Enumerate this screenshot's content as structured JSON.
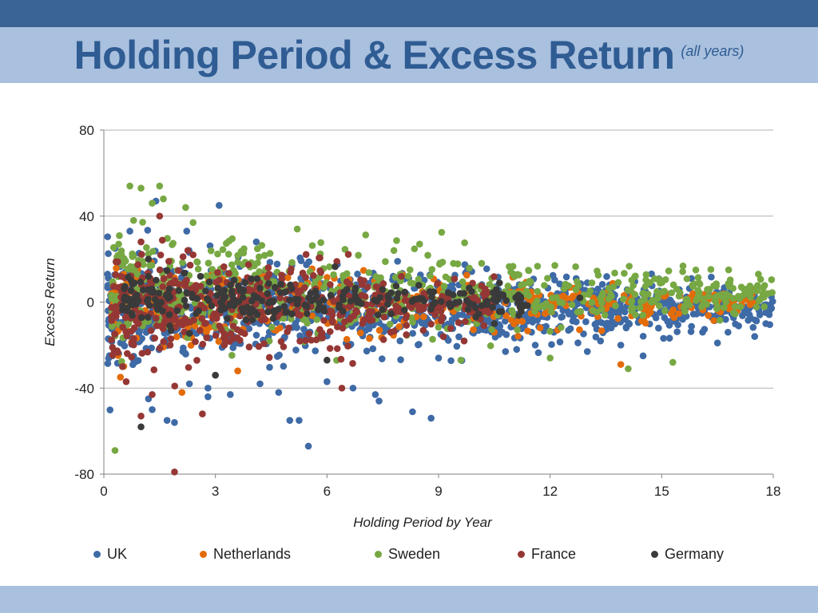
{
  "header": {
    "title": "Holding Period & Excess Return",
    "subtitle": "(all years)"
  },
  "colors": {
    "top_bar": "#3a6496",
    "title_band": "#a9c0de",
    "title_text": "#2f5c93",
    "bottom_bar": "#a9c0de",
    "grid": "#b0b0b0",
    "axis": "#808080"
  },
  "chart_data": {
    "type": "scatter",
    "title": "",
    "xlabel": "Holding Period by Year",
    "ylabel": "Excess Return",
    "xlim": [
      0,
      18
    ],
    "ylim": [
      -80,
      80
    ],
    "x_ticks": [
      0,
      3,
      6,
      9,
      12,
      15,
      18
    ],
    "y_ticks": [
      80,
      40,
      0,
      -40,
      -80
    ],
    "grid": "horizontal",
    "legend_position": "bottom",
    "series": [
      {
        "name": "UK",
        "color": "#3e6aa6",
        "cloud": {
          "x_range": [
            0.1,
            18
          ],
          "n": 1100,
          "y_spread_start": 13,
          "y_spread_end": 4,
          "y_bias": -5
        },
        "points": [
          [
            0.3,
            25
          ],
          [
            0.5,
            13
          ],
          [
            0.4,
            -24
          ],
          [
            0.7,
            33
          ],
          [
            1.4,
            47
          ],
          [
            1.7,
            -55
          ],
          [
            1.9,
            -56
          ],
          [
            1.3,
            -50
          ],
          [
            1.2,
            -45
          ],
          [
            3.1,
            45
          ],
          [
            2.3,
            -38
          ],
          [
            2.8,
            -40
          ],
          [
            2.8,
            -44
          ],
          [
            3.4,
            -43
          ],
          [
            4.1,
            28
          ],
          [
            4.2,
            -38
          ],
          [
            4.7,
            -42
          ],
          [
            5.0,
            -55
          ],
          [
            5.25,
            -55
          ],
          [
            5.5,
            -67
          ],
          [
            6.0,
            -37
          ],
          [
            6.7,
            -40
          ],
          [
            7.3,
            -43
          ],
          [
            7.4,
            -46
          ],
          [
            8.3,
            -51
          ],
          [
            8.8,
            -54
          ],
          [
            9.0,
            -26
          ],
          [
            10.8,
            -23
          ],
          [
            11.1,
            -22
          ],
          [
            11.6,
            -20
          ],
          [
            12.1,
            -14
          ],
          [
            13.0,
            -23
          ],
          [
            13.9,
            -20
          ],
          [
            14.5,
            -25
          ],
          [
            16.1,
            -14
          ],
          [
            16.5,
            -19
          ],
          [
            17.5,
            -16
          ],
          [
            17.8,
            -10
          ],
          [
            15.8,
            11
          ],
          [
            13.6,
            8
          ],
          [
            12.7,
            11
          ],
          [
            0.1,
            13
          ]
        ]
      },
      {
        "name": "Netherlands",
        "color": "#e36c0a",
        "cloud": {
          "x_range": [
            0.2,
            17.5
          ],
          "n": 380,
          "y_spread_start": 10,
          "y_spread_end": 3,
          "y_bias": -2
        },
        "points": [
          [
            0.3,
            5
          ],
          [
            0.5,
            20
          ],
          [
            0.4,
            -13
          ],
          [
            2.1,
            -42
          ],
          [
            3.6,
            -32
          ],
          [
            10.5,
            -14
          ],
          [
            13.9,
            -29
          ],
          [
            12.2,
            -13
          ],
          [
            15.1,
            3
          ]
        ]
      },
      {
        "name": "Sweden",
        "color": "#77a843",
        "cloud": {
          "x_range": [
            0.2,
            18
          ],
          "n": 650,
          "y_spread_start": 14,
          "y_spread_end": 4,
          "y_bias": 6
        },
        "points": [
          [
            0.7,
            54
          ],
          [
            1.0,
            53
          ],
          [
            1.5,
            54
          ],
          [
            1.3,
            46
          ],
          [
            1.6,
            48
          ],
          [
            0.8,
            38
          ],
          [
            0.3,
            -69
          ],
          [
            2.2,
            44
          ],
          [
            2.4,
            37
          ],
          [
            5.2,
            34
          ],
          [
            7.8,
            24
          ],
          [
            9.6,
            -27
          ],
          [
            12.0,
            -26
          ],
          [
            14.1,
            -31
          ],
          [
            15.3,
            -28
          ],
          [
            16.8,
            15
          ],
          [
            17.6,
            13
          ],
          [
            9.4,
            18
          ],
          [
            0.5,
            20
          ]
        ]
      },
      {
        "name": "France",
        "color": "#953734",
        "cloud": {
          "x_range": [
            0.2,
            10.5
          ],
          "n": 520,
          "y_spread_start": 12,
          "y_spread_end": 6,
          "y_bias": -2
        },
        "points": [
          [
            1.9,
            -79
          ],
          [
            1.0,
            -53
          ],
          [
            2.65,
            -52
          ],
          [
            1.3,
            -43
          ],
          [
            0.6,
            -37
          ],
          [
            0.5,
            -30
          ],
          [
            1.5,
            40
          ],
          [
            1.0,
            28
          ],
          [
            6.4,
            -40
          ],
          [
            2.4,
            22
          ],
          [
            8.0,
            12
          ]
        ]
      },
      {
        "name": "Germany",
        "color": "#3a3a3a",
        "cloud": {
          "x_range": [
            0.5,
            11.5
          ],
          "n": 260,
          "y_spread_start": 6,
          "y_spread_end": 3,
          "y_bias": 1
        },
        "points": [
          [
            1.0,
            -58
          ],
          [
            3.0,
            -34
          ],
          [
            6.0,
            -27
          ],
          [
            1.2,
            20
          ],
          [
            2.6,
            12
          ],
          [
            10.5,
            -10
          ],
          [
            12.8,
            2
          ]
        ]
      }
    ]
  }
}
